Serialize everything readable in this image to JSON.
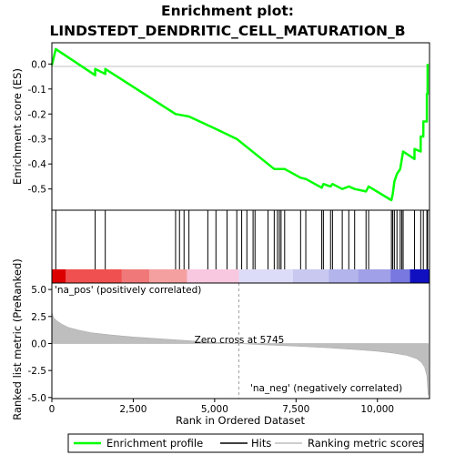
{
  "chart_data": {
    "type": "line",
    "title_line1": "Enrichment plot:",
    "title_line2": "LINDSTEDT_DENDRITIC_CELL_MATURATION_B",
    "xlabel": "Rank in Ordered Dataset",
    "ylabel_top": "Enrichment score (ES)",
    "ylabel_bottom": "Ranked list metric (PreRanked)",
    "x_range": [
      0,
      11600
    ],
    "x_ticks": [
      0,
      2500,
      5000,
      7500,
      10000
    ],
    "x_tick_labels": [
      "0",
      "2,500",
      "5,000",
      "7,500",
      "10,000"
    ],
    "es_ylim": [
      -0.585,
      0.085
    ],
    "es_ticks": [
      0.0,
      -0.1,
      -0.2,
      -0.3,
      -0.4,
      -0.5
    ],
    "es_tick_labels": [
      "0.0",
      "-0.1",
      "-0.2",
      "-0.3",
      "-0.4",
      "-0.5"
    ],
    "metric_ylim": [
      -5.1,
      5.6
    ],
    "metric_ticks": [
      5.0,
      2.5,
      0.0,
      -2.5,
      -5.0
    ],
    "metric_tick_labels": [
      "5.0",
      "2.5",
      "0.0",
      "-2.5",
      "-5.0"
    ],
    "zero_cross": 5745,
    "zero_cross_label": "Zero cross at 5745",
    "pos_label": "'na_pos' (positively correlated)",
    "neg_label": "'na_neg' (negatively correlated)",
    "hits": [
      120,
      1330,
      1640,
      3800,
      3920,
      4060,
      4210,
      4790,
      5040,
      5380,
      5680,
      5830,
      5990,
      6180,
      6240,
      6640,
      6830,
      6930,
      6990,
      7040,
      7150,
      7640,
      7800,
      8290,
      8340,
      8560,
      8620,
      8920,
      9120,
      9300,
      9650,
      9730,
      10430,
      10470,
      10520,
      10600,
      10700,
      10750,
      10790,
      11140,
      11330,
      11410,
      11520,
      11540
    ],
    "es_points": [
      [
        0,
        -0.005
      ],
      [
        120,
        0.06
      ],
      [
        1330,
        -0.045
      ],
      [
        1330,
        -0.02
      ],
      [
        1640,
        -0.04
      ],
      [
        1640,
        -0.02
      ],
      [
        3800,
        -0.2
      ],
      [
        4210,
        -0.21
      ],
      [
        5040,
        -0.26
      ],
      [
        5680,
        -0.3
      ],
      [
        6830,
        -0.42
      ],
      [
        7150,
        -0.42
      ],
      [
        7640,
        -0.455
      ],
      [
        7800,
        -0.46
      ],
      [
        8290,
        -0.495
      ],
      [
        8340,
        -0.48
      ],
      [
        8560,
        -0.49
      ],
      [
        8620,
        -0.48
      ],
      [
        8920,
        -0.5
      ],
      [
        9120,
        -0.49
      ],
      [
        9300,
        -0.5
      ],
      [
        9650,
        -0.51
      ],
      [
        9730,
        -0.49
      ],
      [
        10430,
        -0.545
      ],
      [
        10470,
        -0.52
      ],
      [
        10520,
        -0.47
      ],
      [
        10600,
        -0.44
      ],
      [
        10700,
        -0.42
      ],
      [
        10750,
        -0.38
      ],
      [
        10790,
        -0.35
      ],
      [
        11140,
        -0.38
      ],
      [
        11140,
        -0.34
      ],
      [
        11330,
        -0.35
      ],
      [
        11330,
        -0.29
      ],
      [
        11410,
        -0.29
      ],
      [
        11410,
        -0.23
      ],
      [
        11520,
        -0.23
      ],
      [
        11520,
        -0.12
      ],
      [
        11540,
        -0.12
      ],
      [
        11540,
        0.0
      ]
    ],
    "metric_profile": [
      [
        0,
        2.9
      ],
      [
        50,
        2.4
      ],
      [
        150,
        2.1
      ],
      [
        300,
        1.8
      ],
      [
        500,
        1.5
      ],
      [
        800,
        1.25
      ],
      [
        1200,
        1.0
      ],
      [
        1800,
        0.8
      ],
      [
        2500,
        0.6
      ],
      [
        3500,
        0.4
      ],
      [
        4500,
        0.2
      ],
      [
        5300,
        0.08
      ],
      [
        5745,
        0.0
      ],
      [
        6500,
        -0.12
      ],
      [
        7500,
        -0.25
      ],
      [
        8500,
        -0.4
      ],
      [
        9500,
        -0.6
      ],
      [
        10000,
        -0.72
      ],
      [
        10500,
        -0.9
      ],
      [
        10900,
        -1.1
      ],
      [
        11200,
        -1.4
      ],
      [
        11350,
        -1.75
      ],
      [
        11450,
        -2.2
      ],
      [
        11520,
        -3.0
      ],
      [
        11560,
        -4.8
      ]
    ],
    "heatmap_segments": [
      {
        "start": 0,
        "end": 430,
        "color": "#dd0000"
      },
      {
        "start": 430,
        "end": 2150,
        "color": "#f05050"
      },
      {
        "start": 2150,
        "end": 3000,
        "color": "#f07878"
      },
      {
        "start": 3000,
        "end": 4150,
        "color": "#f5a0a0"
      },
      {
        "start": 4150,
        "end": 5745,
        "color": "#f8c8e0"
      },
      {
        "start": 5745,
        "end": 7400,
        "color": "#dcdcf8"
      },
      {
        "start": 7400,
        "end": 8500,
        "color": "#c8c8f0"
      },
      {
        "start": 8500,
        "end": 9400,
        "color": "#b4b4ec"
      },
      {
        "start": 9400,
        "end": 10400,
        "color": "#a0a0e8"
      },
      {
        "start": 10400,
        "end": 11000,
        "color": "#7878e0"
      },
      {
        "start": 11000,
        "end": 11600,
        "color": "#1010c0"
      }
    ],
    "legend": {
      "enrichment": "Enrichment profile",
      "hits": "Hits",
      "ranking": "Ranking metric scores"
    },
    "colors": {
      "enrichment": "#00ff00",
      "hits": "#000000",
      "metric_fill": "#bebebe",
      "zero_line": "#a0a0a0",
      "pos_label": "#cc0000",
      "neg_label": "#0000cc"
    }
  }
}
